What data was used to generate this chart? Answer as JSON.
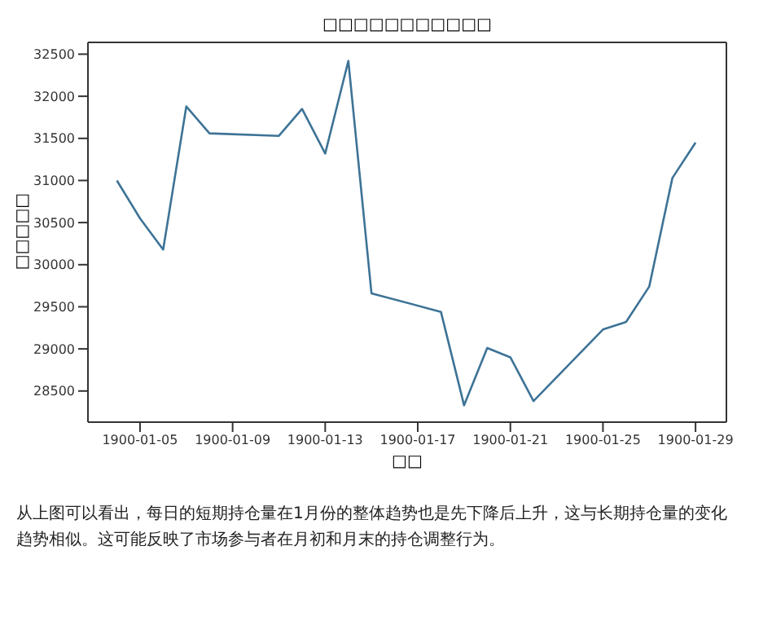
{
  "chart_data": {
    "type": "line",
    "title": "□□□□□□□□□□□",
    "xlabel": "□□",
    "ylabel": "□□□□□",
    "x": [
      "1900-01-04",
      "1900-01-05",
      "1900-01-06",
      "1900-01-07",
      "1900-01-08",
      "1900-01-11",
      "1900-01-12",
      "1900-01-13",
      "1900-01-14",
      "1900-01-15",
      "1900-01-18",
      "1900-01-19",
      "1900-01-20",
      "1900-01-21",
      "1900-01-22",
      "1900-01-25",
      "1900-01-26",
      "1900-01-27",
      "1900-01-28",
      "1900-01-29"
    ],
    "series": [
      {
        "color": "#3d7396",
        "values": [
          31000,
          30550,
          30180,
          31880,
          31560,
          31530,
          31850,
          31320,
          32420,
          29660,
          29440,
          28330,
          29010,
          28900,
          28380,
          29230,
          29320,
          29740,
          31030,
          31450
        ]
      }
    ],
    "xlim": [
      "1900-01-02T18:00",
      "1900-01-30T08:00"
    ],
    "xticks": [
      "1900-01-05",
      "1900-01-09",
      "1900-01-13",
      "1900-01-17",
      "1900-01-21",
      "1900-01-25",
      "1900-01-29"
    ],
    "ylim": [
      28130,
      32640
    ],
    "yticks": [
      28500,
      29000,
      29500,
      30000,
      30500,
      31000,
      31500,
      32000,
      32500
    ],
    "grid": false,
    "annotations": [
      "从上图可以看出，每日的短期持仓量在1月份的整体趋势也是先下降后上升，这与长期持仓量的变化趋势相似。这可能反映了市场参与者在月初和月末的持仓调整行为。"
    ]
  }
}
